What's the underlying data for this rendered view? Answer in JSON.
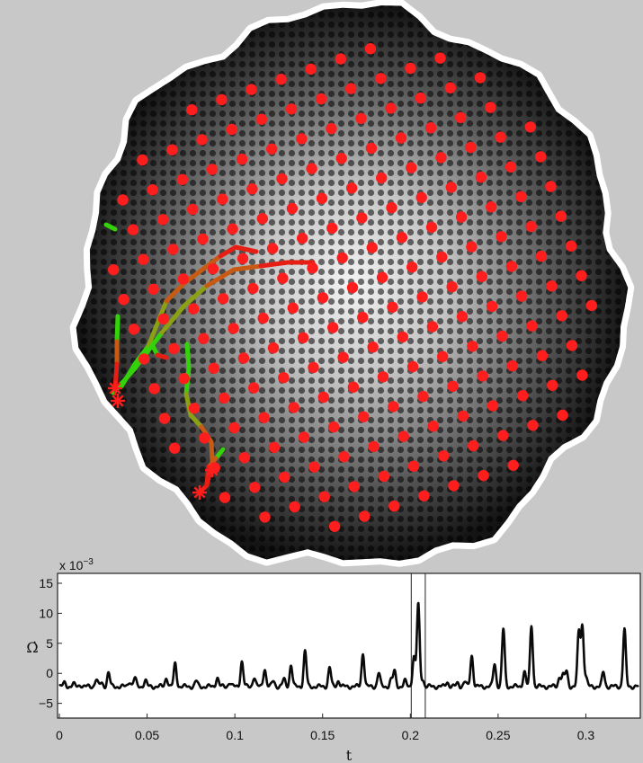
{
  "chart_data": [
    {
      "type": "scatter",
      "title": "",
      "xlabel": "",
      "ylabel": "",
      "background": "grayscale particle-density image inside an irregular circular boundary, bright center, dark rim",
      "markers_color": "#ff1e1e",
      "trajectory_colors": [
        "#34d20a",
        "#8ca016",
        "#c85a14",
        "#e61e14"
      ],
      "red_marker_count": 112,
      "trajectory_count": 6,
      "end_marker": "asterisk"
    },
    {
      "type": "line",
      "title": "",
      "xlabel": "t",
      "ylabel": "Ω̇",
      "y_multiplier": "x 10",
      "y_multiplier_exponent": "−3",
      "xlim": [
        0,
        0.33
      ],
      "ylim": [
        -7,
        15
      ],
      "xticks": [
        0,
        0.05,
        0.1,
        0.15,
        0.2,
        0.25,
        0.3
      ],
      "xtick_labels": [
        "0",
        "0.05",
        "0.1",
        "0.15",
        "0.2",
        "0.25",
        "0.3"
      ],
      "yticks": [
        -5,
        0,
        5,
        10,
        15
      ],
      "ytick_labels": [
        "−5",
        "0",
        "5",
        "10",
        "15"
      ],
      "baseline": -2.2,
      "highlight_window": [
        0.2005,
        0.2085
      ],
      "spikes": [
        {
          "t": 0.003,
          "h": 0.6
        },
        {
          "t": 0.008,
          "h": 0.4
        },
        {
          "t": 0.012,
          "h": 0.3
        },
        {
          "t": 0.021,
          "h": 1.2
        },
        {
          "t": 0.024,
          "h": 0.6
        },
        {
          "t": 0.028,
          "h": 2.3
        },
        {
          "t": 0.04,
          "h": 0.9
        },
        {
          "t": 0.043,
          "h": 1.4
        },
        {
          "t": 0.049,
          "h": 1.0
        },
        {
          "t": 0.061,
          "h": 1.5
        },
        {
          "t": 0.066,
          "h": 3.8
        },
        {
          "t": 0.078,
          "h": 0.9
        },
        {
          "t": 0.09,
          "h": 1.5
        },
        {
          "t": 0.097,
          "h": 0.7
        },
        {
          "t": 0.104,
          "h": 4.2
        },
        {
          "t": 0.111,
          "h": 1.6
        },
        {
          "t": 0.117,
          "h": 3.0
        },
        {
          "t": 0.122,
          "h": 1.0
        },
        {
          "t": 0.128,
          "h": 1.2
        },
        {
          "t": 0.132,
          "h": 3.6
        },
        {
          "t": 0.14,
          "h": 5.9
        },
        {
          "t": 0.154,
          "h": 3.2
        },
        {
          "t": 0.159,
          "h": 1.0
        },
        {
          "t": 0.173,
          "h": 5.6
        },
        {
          "t": 0.182,
          "h": 2.3
        },
        {
          "t": 0.189,
          "h": 1.1
        },
        {
          "t": 0.191,
          "h": 2.5
        },
        {
          "t": 0.197,
          "h": 0.9
        },
        {
          "t": 0.202,
          "h": 5.0
        },
        {
          "t": 0.2045,
          "h": 13.7
        },
        {
          "t": 0.207,
          "h": 1.2
        },
        {
          "t": 0.221,
          "h": 0.8
        },
        {
          "t": 0.227,
          "h": 0.6
        },
        {
          "t": 0.231,
          "h": 0.8
        },
        {
          "t": 0.235,
          "h": 5.2
        },
        {
          "t": 0.248,
          "h": 3.8
        },
        {
          "t": 0.253,
          "h": 9.6
        },
        {
          "t": 0.265,
          "h": 2.5
        },
        {
          "t": 0.269,
          "h": 10.2
        },
        {
          "t": 0.285,
          "h": 1.6
        },
        {
          "t": 0.287,
          "h": 1.8
        },
        {
          "t": 0.289,
          "h": 2.5
        },
        {
          "t": 0.296,
          "h": 9.0
        },
        {
          "t": 0.298,
          "h": 10.0
        },
        {
          "t": 0.3,
          "h": 1.5
        },
        {
          "t": 0.31,
          "h": 2.4
        },
        {
          "t": 0.322,
          "h": 9.5
        }
      ]
    }
  ]
}
